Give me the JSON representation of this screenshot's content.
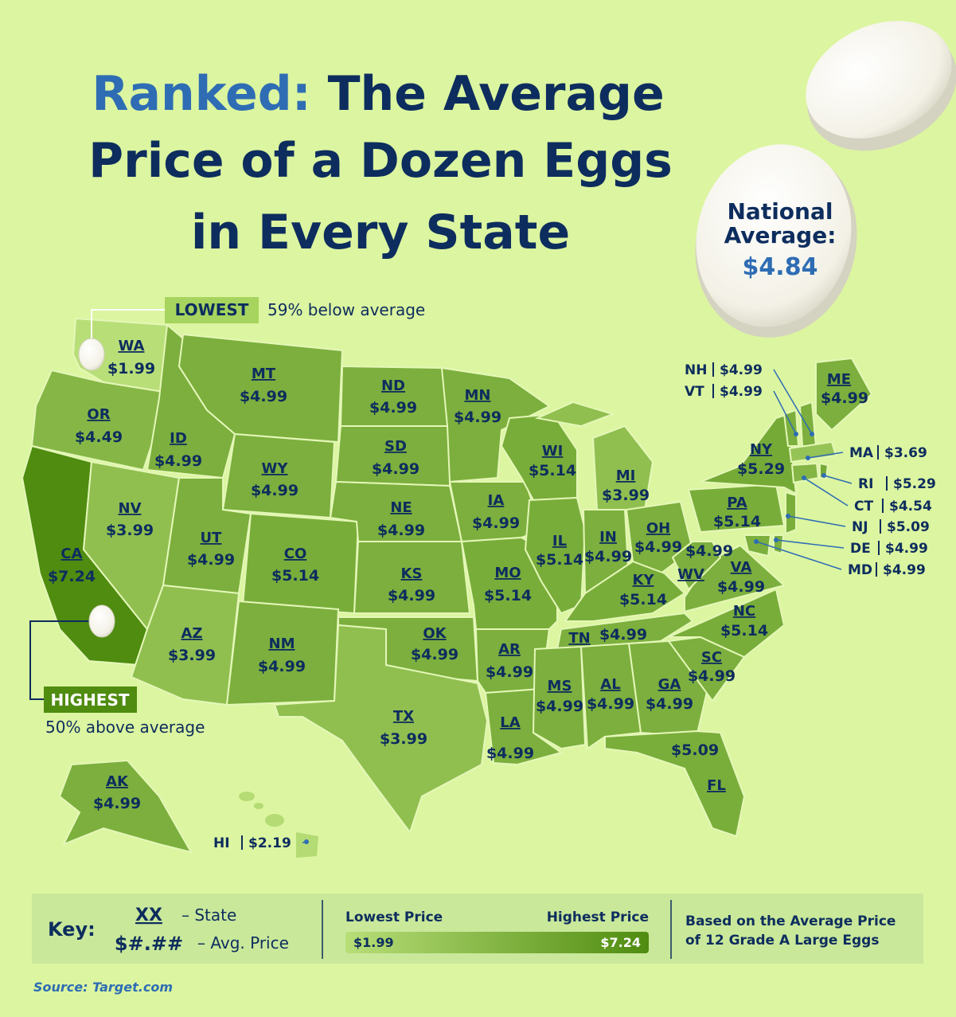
{
  "header": {
    "highlight": "Ranked:",
    "title_lines": [
      "The Average",
      "Price of a Dozen Eggs",
      "in Every State"
    ]
  },
  "national_average": {
    "label_lines": [
      "National",
      "Average:"
    ],
    "value": "$4.84"
  },
  "lowest": {
    "label": "LOWEST",
    "note": "59% below average"
  },
  "highest": {
    "label": "HIGHEST",
    "note": "50% above average"
  },
  "states": [
    {
      "abbr": "WA",
      "price": "$1.99"
    },
    {
      "abbr": "OR",
      "price": "$4.49"
    },
    {
      "abbr": "CA",
      "price": "$7.24"
    },
    {
      "abbr": "ID",
      "price": "$4.99"
    },
    {
      "abbr": "NV",
      "price": "$3.99"
    },
    {
      "abbr": "MT",
      "price": "$4.99"
    },
    {
      "abbr": "WY",
      "price": "$4.99"
    },
    {
      "abbr": "UT",
      "price": "$4.99"
    },
    {
      "abbr": "AZ",
      "price": "$3.99"
    },
    {
      "abbr": "CO",
      "price": "$5.14"
    },
    {
      "abbr": "NM",
      "price": "$4.99"
    },
    {
      "abbr": "ND",
      "price": "$4.99"
    },
    {
      "abbr": "SD",
      "price": "$4.99"
    },
    {
      "abbr": "NE",
      "price": "$4.99"
    },
    {
      "abbr": "KS",
      "price": "$4.99"
    },
    {
      "abbr": "OK",
      "price": "$4.99"
    },
    {
      "abbr": "TX",
      "price": "$3.99"
    },
    {
      "abbr": "MN",
      "price": "$4.99"
    },
    {
      "abbr": "IA",
      "price": "$4.99"
    },
    {
      "abbr": "MO",
      "price": "$5.14"
    },
    {
      "abbr": "AR",
      "price": "$4.99"
    },
    {
      "abbr": "LA",
      "price": "$4.99"
    },
    {
      "abbr": "WI",
      "price": "$5.14"
    },
    {
      "abbr": "IL",
      "price": "$5.14"
    },
    {
      "abbr": "MI",
      "price": "$3.99"
    },
    {
      "abbr": "IN",
      "price": "$4.99"
    },
    {
      "abbr": "OH",
      "price": "$4.99"
    },
    {
      "abbr": "KY",
      "price": "$5.14"
    },
    {
      "abbr": "TN",
      "price": "$4.99"
    },
    {
      "abbr": "MS",
      "price": "$4.99"
    },
    {
      "abbr": "AL",
      "price": "$4.99"
    },
    {
      "abbr": "GA",
      "price": "$4.99"
    },
    {
      "abbr": "FL",
      "price": "$5.09"
    },
    {
      "abbr": "SC",
      "price": "$4.99"
    },
    {
      "abbr": "NC",
      "price": "$5.14"
    },
    {
      "abbr": "VA",
      "price": "$4.99"
    },
    {
      "abbr": "WV",
      "price": "$4.99"
    },
    {
      "abbr": "PA",
      "price": "$5.14"
    },
    {
      "abbr": "NY",
      "price": "$5.29"
    },
    {
      "abbr": "ME",
      "price": "$4.99"
    },
    {
      "abbr": "AK",
      "price": "$4.99"
    },
    {
      "abbr": "NH",
      "price": "$4.99"
    },
    {
      "abbr": "VT",
      "price": "$4.99"
    },
    {
      "abbr": "MA",
      "price": "$3.69"
    },
    {
      "abbr": "RI",
      "price": "$5.29"
    },
    {
      "abbr": "CT",
      "price": "$4.54"
    },
    {
      "abbr": "NJ",
      "price": "$5.09"
    },
    {
      "abbr": "DE",
      "price": "$4.99"
    },
    {
      "abbr": "MD",
      "price": "$4.99"
    },
    {
      "abbr": "HI",
      "price": "$2.19"
    }
  ],
  "key": {
    "title": "Key:",
    "state_sample": "XX",
    "state_desc": "– State",
    "price_sample": "$#.##",
    "price_desc": "– Avg. Price",
    "lowest_label": "Lowest Price",
    "highest_label": "Highest Price",
    "min": "$1.99",
    "max": "$7.24",
    "basis_lines": [
      "Based on the Average Price",
      "of 12 Grade A Large Eggs"
    ]
  },
  "source": "Source: Target.com"
}
